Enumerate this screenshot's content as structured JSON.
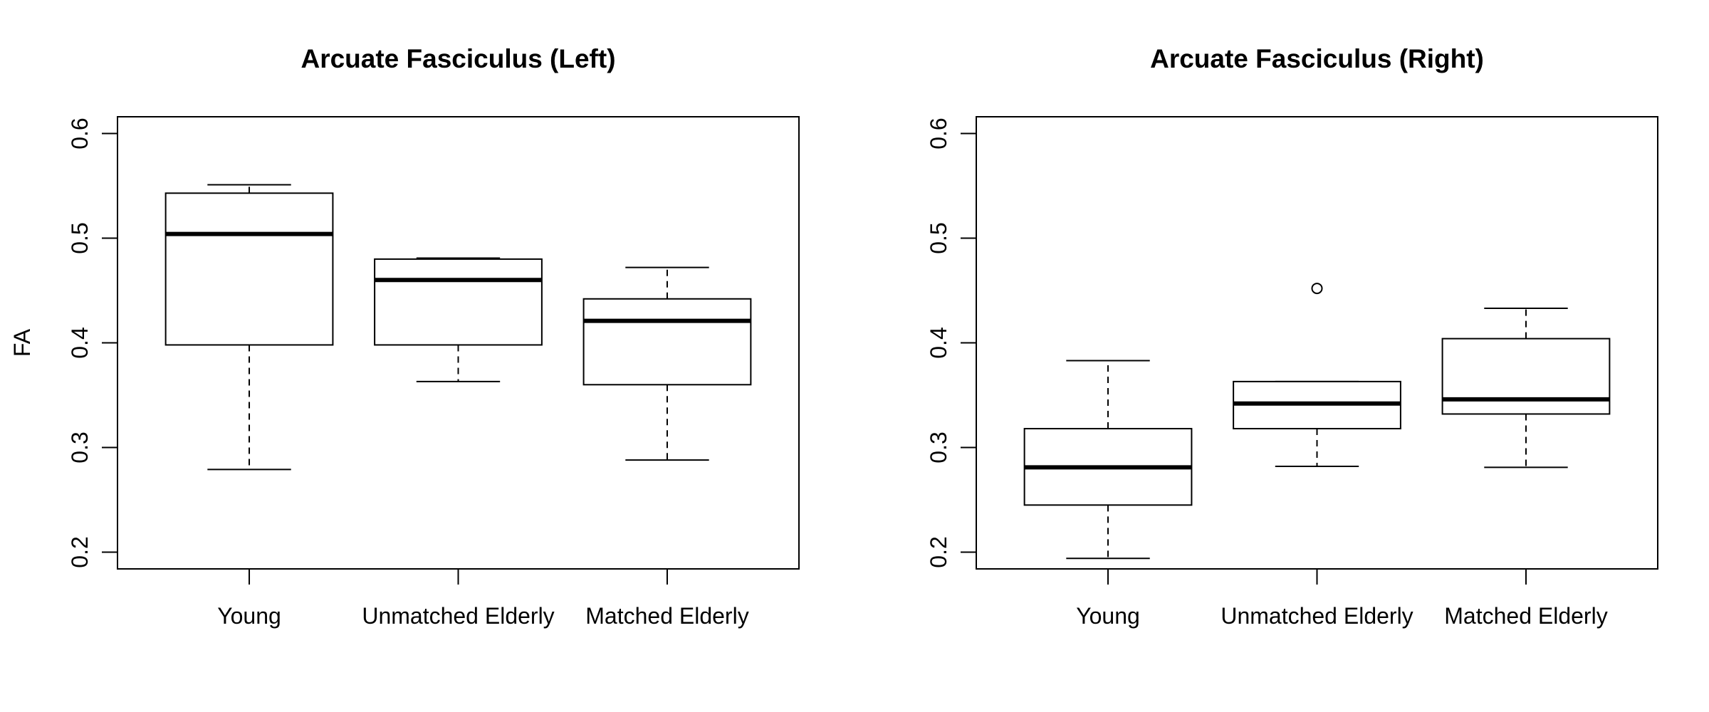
{
  "chart_data": [
    {
      "type": "boxplot",
      "title": "Arcuate Fasciculus (Left)",
      "ylabel": "FA",
      "xlabel": "",
      "ylim": [
        0.184,
        0.616
      ],
      "yticks": [
        "0.2",
        "0.3",
        "0.4",
        "0.5",
        "0.6"
      ],
      "grid": false,
      "categories": [
        "Young",
        "Unmatched Elderly",
        "Matched Elderly"
      ],
      "boxes": [
        {
          "category": "Young",
          "whisker_low": 0.279,
          "q1": 0.398,
          "median": 0.504,
          "q3": 0.543,
          "whisker_high": 0.551,
          "outliers": []
        },
        {
          "category": "Unmatched Elderly",
          "whisker_low": 0.363,
          "q1": 0.398,
          "median": 0.46,
          "q3": 0.48,
          "whisker_high": 0.481,
          "outliers": []
        },
        {
          "category": "Matched Elderly",
          "whisker_low": 0.288,
          "q1": 0.36,
          "median": 0.421,
          "q3": 0.442,
          "whisker_high": 0.472,
          "outliers": []
        }
      ]
    },
    {
      "type": "boxplot",
      "title": "Arcuate Fasciculus (Right)",
      "ylabel": "",
      "xlabel": "",
      "ylim": [
        0.184,
        0.616
      ],
      "yticks": [
        "0.2",
        "0.3",
        "0.4",
        "0.5",
        "0.6"
      ],
      "grid": false,
      "categories": [
        "Young",
        "Unmatched Elderly",
        "Matched Elderly"
      ],
      "boxes": [
        {
          "category": "Young",
          "whisker_low": 0.194,
          "q1": 0.245,
          "median": 0.281,
          "q3": 0.318,
          "whisker_high": 0.383,
          "outliers": []
        },
        {
          "category": "Unmatched Elderly",
          "whisker_low": 0.282,
          "q1": 0.318,
          "median": 0.342,
          "q3": 0.363,
          "whisker_high": 0.363,
          "outliers": [
            0.452
          ]
        },
        {
          "category": "Matched Elderly",
          "whisker_low": 0.281,
          "q1": 0.332,
          "median": 0.346,
          "q3": 0.404,
          "whisker_high": 0.433,
          "outliers": []
        }
      ]
    }
  ]
}
